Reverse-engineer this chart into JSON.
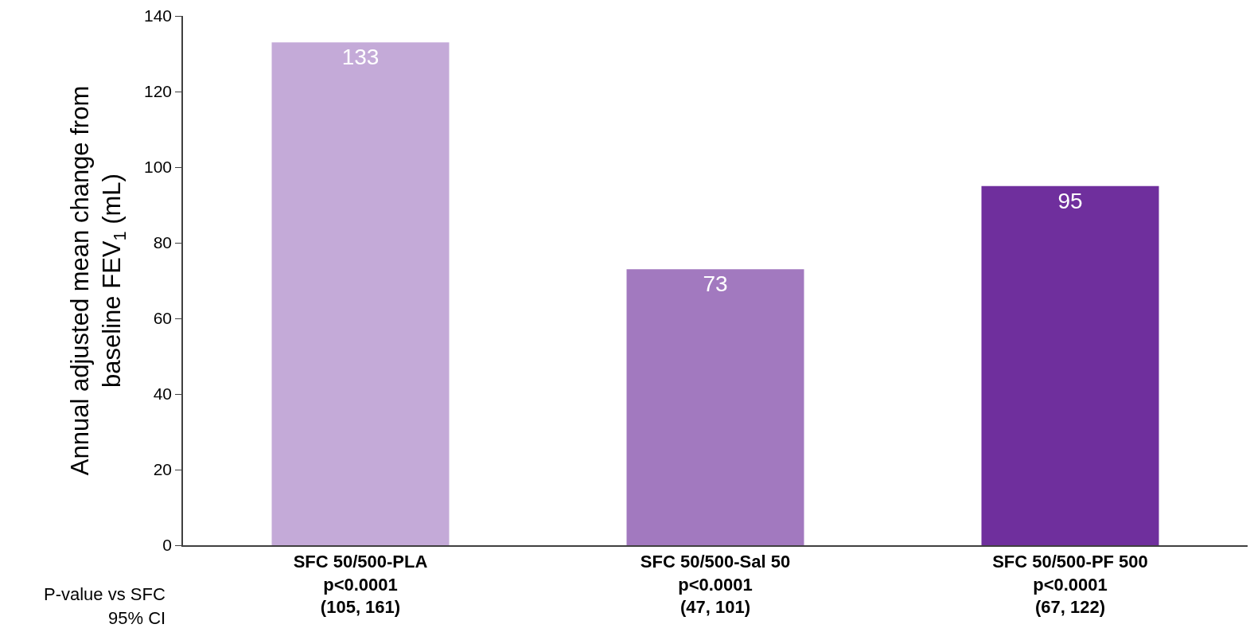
{
  "chart_data": {
    "type": "bar",
    "categories": [
      "SFC 50/500-PLA\np<0.0001\n(105, 161)",
      "SFC 50/500-Sal 50\np<0.0001\n(47, 101)",
      "SFC 50/500-PF 500\np<0.0001\n(67, 122)"
    ],
    "values": [
      133,
      73,
      95
    ],
    "colors": [
      "#c4aad8",
      "#a279bf",
      "#6f2f9d"
    ],
    "ylabel": "Annual adjusted mean change from\nbaseline FEV$_{1}$ (mL)",
    "ylim": [
      0,
      140
    ],
    "yticks": [
      0,
      20,
      40,
      60,
      80,
      100,
      120,
      140
    ],
    "data_labels": true,
    "annotations": [
      "P-value vs SFC",
      "95% CI"
    ]
  }
}
